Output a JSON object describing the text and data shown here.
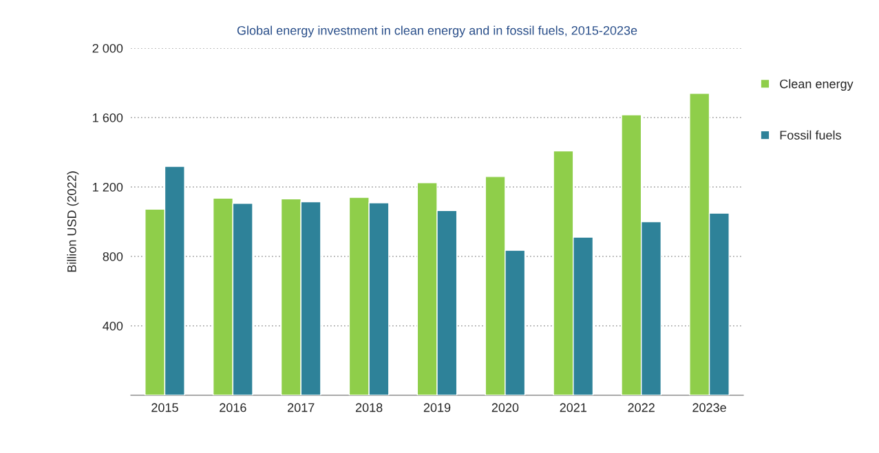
{
  "chart_data": {
    "type": "bar",
    "title": "Global energy investment in clean energy and in fossil fuels, 2015-2023e",
    "ylabel": "Billion USD (2022)",
    "categories": [
      "2015",
      "2016",
      "2017",
      "2018",
      "2019",
      "2020",
      "2021",
      "2022",
      "2023e"
    ],
    "series": [
      {
        "name": "Clean energy",
        "color": "#8fce4a",
        "values": [
          1072,
          1135,
          1131,
          1140,
          1225,
          1260,
          1408,
          1616,
          1739
        ]
      },
      {
        "name": "Fossil fuels",
        "color": "#2e8299",
        "values": [
          1319,
          1106,
          1115,
          1109,
          1064,
          835,
          911,
          1000,
          1049
        ]
      }
    ],
    "ylim": [
      0,
      2000
    ],
    "yticks": [
      {
        "value": 400,
        "label": "400"
      },
      {
        "value": 800,
        "label": "800"
      },
      {
        "value": 1200,
        "label": "1 200"
      },
      {
        "value": 1600,
        "label": "1 600"
      },
      {
        "value": 2000,
        "label": "2 000"
      }
    ],
    "grid": "y",
    "legend": "right"
  }
}
